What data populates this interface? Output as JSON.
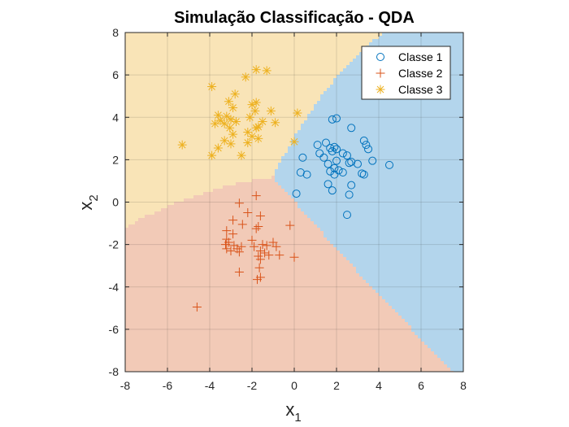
{
  "chart_data": {
    "type": "scatter",
    "title": "Simulação Classificação - QDA",
    "xlabel": "x",
    "xlabel_sub": "1",
    "ylabel": "x",
    "ylabel_sub": "2",
    "xlim": [
      -8,
      8
    ],
    "ylim": [
      -8,
      8
    ],
    "xticks": [
      -8,
      -6,
      -4,
      -2,
      0,
      2,
      4,
      6,
      8
    ],
    "yticks": [
      -8,
      -6,
      -4,
      -2,
      0,
      2,
      4,
      6,
      8
    ],
    "grid": true,
    "legend_position": "top-right",
    "decision_regions": [
      {
        "name": "Classe 1",
        "color": "#b3d5ec"
      },
      {
        "name": "Classe 2",
        "color": "#f2cab7"
      },
      {
        "name": "Classe 3",
        "color": "#f9e4b7"
      }
    ],
    "series": [
      {
        "name": "Classe 1",
        "marker": "circle",
        "color": "#0072bd",
        "points": [
          [
            1.8,
            3.9
          ],
          [
            2.0,
            3.95
          ],
          [
            2.7,
            3.5
          ],
          [
            1.5,
            2.8
          ],
          [
            1.1,
            2.7
          ],
          [
            1.9,
            2.6
          ],
          [
            1.7,
            2.55
          ],
          [
            2.0,
            2.5
          ],
          [
            1.8,
            2.4
          ],
          [
            2.3,
            2.3
          ],
          [
            1.2,
            2.3
          ],
          [
            1.4,
            2.1
          ],
          [
            0.4,
            2.1
          ],
          [
            2.5,
            2.2
          ],
          [
            3.3,
            2.9
          ],
          [
            3.4,
            2.7
          ],
          [
            3.5,
            2.5
          ],
          [
            3.7,
            1.95
          ],
          [
            2.6,
            1.85
          ],
          [
            2.7,
            1.9
          ],
          [
            3.0,
            1.8
          ],
          [
            2.0,
            1.95
          ],
          [
            1.6,
            1.8
          ],
          [
            1.9,
            1.6
          ],
          [
            2.1,
            1.5
          ],
          [
            1.7,
            1.45
          ],
          [
            2.3,
            1.4
          ],
          [
            3.2,
            1.35
          ],
          [
            3.3,
            1.3
          ],
          [
            4.5,
            1.75
          ],
          [
            1.9,
            1.3
          ],
          [
            0.3,
            1.4
          ],
          [
            0.6,
            1.3
          ],
          [
            1.6,
            0.85
          ],
          [
            2.7,
            0.8
          ],
          [
            1.8,
            0.55
          ],
          [
            2.6,
            0.35
          ],
          [
            0.1,
            0.4
          ],
          [
            2.5,
            -0.6
          ]
        ]
      },
      {
        "name": "Classe 2",
        "marker": "plus",
        "color": "#d95319",
        "points": [
          [
            -1.8,
            0.3
          ],
          [
            -2.6,
            -0.05
          ],
          [
            -2.2,
            -0.5
          ],
          [
            -1.6,
            -0.65
          ],
          [
            -2.9,
            -0.85
          ],
          [
            -2.45,
            -1.05
          ],
          [
            -1.7,
            -1.15
          ],
          [
            -1.8,
            -1.25
          ],
          [
            -0.2,
            -1.1
          ],
          [
            -3.2,
            -1.35
          ],
          [
            -2.9,
            -1.5
          ],
          [
            -3.2,
            -1.75
          ],
          [
            -3.1,
            -1.9
          ],
          [
            -2.0,
            -1.8
          ],
          [
            -1.5,
            -2.0
          ],
          [
            -1.9,
            -2.1
          ],
          [
            -3.25,
            -2.0
          ],
          [
            -3.2,
            -2.2
          ],
          [
            -2.85,
            -2.05
          ],
          [
            -2.7,
            -2.2
          ],
          [
            -2.5,
            -2.1
          ],
          [
            -1.3,
            -2.05
          ],
          [
            -1.0,
            -1.9
          ],
          [
            -0.85,
            -2.1
          ],
          [
            -1.6,
            -2.3
          ],
          [
            -1.4,
            -2.4
          ],
          [
            -1.7,
            -2.55
          ],
          [
            -1.6,
            -2.7
          ],
          [
            -1.2,
            -2.5
          ],
          [
            -3.0,
            -2.3
          ],
          [
            -2.6,
            -2.35
          ],
          [
            -0.7,
            -2.5
          ],
          [
            0.0,
            -2.6
          ],
          [
            -1.65,
            -3.1
          ],
          [
            -1.6,
            -3.55
          ],
          [
            -1.75,
            -3.65
          ],
          [
            -2.6,
            -3.3
          ],
          [
            -4.6,
            -4.95
          ]
        ]
      },
      {
        "name": "Classe 3",
        "marker": "asterisk",
        "color": "#edb120",
        "points": [
          [
            -1.8,
            6.25
          ],
          [
            -1.3,
            6.2
          ],
          [
            -2.3,
            5.9
          ],
          [
            -3.9,
            5.45
          ],
          [
            -2.8,
            5.1
          ],
          [
            -1.8,
            4.7
          ],
          [
            -2.0,
            4.6
          ],
          [
            -3.1,
            4.75
          ],
          [
            -2.9,
            4.45
          ],
          [
            -1.85,
            4.3
          ],
          [
            -1.1,
            4.3
          ],
          [
            -3.6,
            4.1
          ],
          [
            -3.2,
            4.05
          ],
          [
            -2.1,
            4.0
          ],
          [
            -3.0,
            3.9
          ],
          [
            -3.5,
            3.85
          ],
          [
            -3.75,
            3.7
          ],
          [
            -2.75,
            3.8
          ],
          [
            -3.3,
            3.7
          ],
          [
            -3.05,
            3.5
          ],
          [
            -1.5,
            3.8
          ],
          [
            -0.9,
            3.75
          ],
          [
            -1.7,
            3.55
          ],
          [
            -1.8,
            3.5
          ],
          [
            0.15,
            4.2
          ],
          [
            -2.2,
            3.3
          ],
          [
            -2.9,
            3.2
          ],
          [
            -2.0,
            3.1
          ],
          [
            -1.7,
            3.0
          ],
          [
            -3.3,
            2.9
          ],
          [
            -3.0,
            2.75
          ],
          [
            -2.2,
            2.8
          ],
          [
            0.0,
            2.85
          ],
          [
            -5.3,
            2.7
          ],
          [
            -3.6,
            2.55
          ],
          [
            -3.9,
            2.2
          ],
          [
            -2.5,
            2.2
          ]
        ]
      }
    ]
  }
}
